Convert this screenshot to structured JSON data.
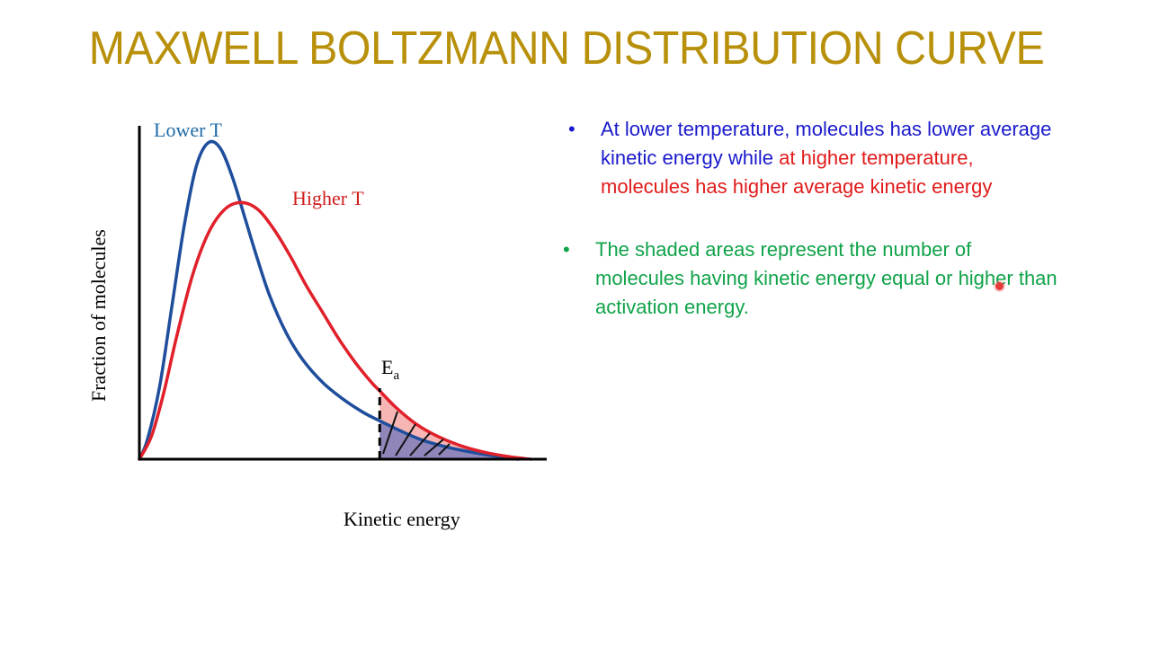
{
  "title": "MAXWELL BOLTZMANN DISTRIBUTION CURVE",
  "chart_data": {
    "type": "line",
    "title": "",
    "xlabel": "Kinetic energy",
    "ylabel": "Fraction of molecules",
    "xlim": [
      0,
      100
    ],
    "ylim": [
      0,
      100
    ],
    "grid": false,
    "activation_energy": {
      "label_main": "E",
      "label_sub": "a",
      "x": 59
    },
    "series": [
      {
        "name": "Lower T",
        "color": "#1f4e9c",
        "x": [
          0,
          2,
          5,
          8,
          11,
          14,
          17,
          20,
          23,
          26,
          29,
          32,
          36,
          40,
          45,
          50,
          55,
          59,
          65,
          70,
          76,
          82,
          88,
          93
        ],
        "y": [
          0,
          6,
          22,
          46,
          70,
          88,
          95,
          93,
          84,
          72,
          60,
          49,
          38,
          30,
          23,
          18,
          14,
          11.5,
          8,
          5.5,
          3.5,
          2,
          0.8,
          0
        ]
      },
      {
        "name": "Higher T",
        "color": "#e0202a",
        "x": [
          0,
          3,
          6,
          9,
          13,
          17,
          21,
          25,
          29,
          33,
          37,
          41,
          45,
          49,
          53,
          57,
          59,
          63,
          68,
          73,
          79,
          85,
          91,
          96
        ],
        "y": [
          0,
          7,
          20,
          36,
          55,
          68,
          75,
          77,
          75,
          69,
          61,
          52,
          44,
          36,
          29,
          23,
          20.5,
          15.5,
          10.5,
          7,
          4,
          2,
          0.7,
          0
        ]
      }
    ]
  },
  "notes": {
    "bullet_char": "•",
    "b1_blue": "At lower temperature, molecules has lower average kinetic energy while",
    "b1_red": "at higher temperature, molecules has higher average kinetic energy",
    "b2": "The shaded areas represent the number of molecules having kinetic energy equal or higher than activation energy."
  }
}
